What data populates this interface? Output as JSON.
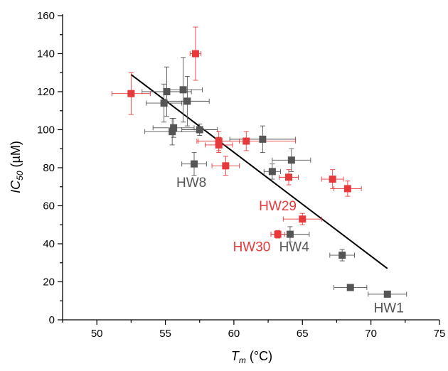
{
  "chart_data": {
    "type": "scatter",
    "xlabel_main": "T",
    "xlabel_sub": "m",
    "xlabel_unit": " (°C)",
    "ylabel_main": "IC",
    "ylabel_sub": "50",
    "ylabel_unit": " (µM)",
    "xlim": [
      47.5,
      75
    ],
    "ylim": [
      0,
      160
    ],
    "xticks": [
      50,
      55,
      60,
      65,
      70,
      75
    ],
    "yticks": [
      0,
      20,
      40,
      60,
      80,
      100,
      120,
      140,
      160
    ],
    "grid": false,
    "colors": {
      "gray": "#555555",
      "red": "#e8393a",
      "fit": "#000000"
    },
    "series": [
      {
        "color": "gray",
        "points": [
          {
            "x": 54.9,
            "y": 114,
            "xerr": 1.3,
            "yerr": 10
          },
          {
            "x": 55.1,
            "y": 120,
            "xerr": 1.8,
            "yerr": 13
          },
          {
            "x": 55.5,
            "y": 99,
            "xerr": 2.0,
            "yerr": 7
          },
          {
            "x": 55.6,
            "y": 101,
            "xerr": 1.5,
            "yerr": 5
          },
          {
            "x": 56.3,
            "y": 121,
            "xerr": 1.4,
            "yerr": 17
          },
          {
            "x": 56.6,
            "y": 115,
            "xerr": 1.6,
            "yerr": 13
          },
          {
            "x": 57.1,
            "y": 82,
            "xerr": 0.9,
            "yerr": 6
          },
          {
            "x": 57.5,
            "y": 100,
            "xerr": 1.3,
            "yerr": 3
          },
          {
            "x": 62.1,
            "y": 95,
            "xerr": 2.4,
            "yerr": 7
          },
          {
            "x": 62.8,
            "y": 78,
            "xerr": 0.6,
            "yerr": 4
          },
          {
            "x": 64.1,
            "y": 45,
            "xerr": 1.4,
            "yerr": 4
          },
          {
            "x": 64.2,
            "y": 84,
            "xerr": 1.4,
            "yerr": 6
          },
          {
            "x": 67.9,
            "y": 34,
            "xerr": 0.9,
            "yerr": 3
          },
          {
            "x": 68.5,
            "y": 17,
            "xerr": 1.2,
            "yerr": 1
          },
          {
            "x": 71.2,
            "y": 13.5,
            "xerr": 1.4,
            "yerr": 1
          }
        ]
      },
      {
        "color": "red",
        "points": [
          {
            "x": 52.5,
            "y": 119,
            "xerr": 1.4,
            "yerr": 11
          },
          {
            "x": 57.2,
            "y": 140,
            "xerr": 0.4,
            "yerr": 14
          },
          {
            "x": 58.9,
            "y": 94,
            "xerr": 1.5,
            "yerr": 5
          },
          {
            "x": 58.9,
            "y": 92,
            "xerr": 1.0,
            "yerr": 4
          },
          {
            "x": 59.4,
            "y": 81,
            "xerr": 1.0,
            "yerr": 5
          },
          {
            "x": 60.9,
            "y": 94,
            "xerr": 3.6,
            "yerr": 5
          },
          {
            "x": 63.2,
            "y": 45,
            "xerr": 0.5,
            "yerr": 2
          },
          {
            "x": 64.0,
            "y": 75,
            "xerr": 0.7,
            "yerr": 4
          },
          {
            "x": 65.0,
            "y": 53,
            "xerr": 1.4,
            "yerr": 3
          },
          {
            "x": 67.2,
            "y": 74,
            "xerr": 0.8,
            "yerr": 5
          },
          {
            "x": 68.3,
            "y": 69,
            "xerr": 1.0,
            "yerr": 4
          }
        ]
      }
    ],
    "fit_line": [
      [
        52.5,
        129
      ],
      [
        71.2,
        27
      ]
    ],
    "annotations": [
      {
        "text": "HW8",
        "x": 56.9,
        "y": 70,
        "color": "gray"
      },
      {
        "text": "HW29",
        "x": 63.2,
        "y": 57.5,
        "color": "red"
      },
      {
        "text": "HW30",
        "x": 61.3,
        "y": 36,
        "color": "red"
      },
      {
        "text": "HW4",
        "x": 64.4,
        "y": 36,
        "color": "gray"
      },
      {
        "text": "HW1",
        "x": 71.3,
        "y": 4,
        "color": "gray"
      }
    ]
  }
}
